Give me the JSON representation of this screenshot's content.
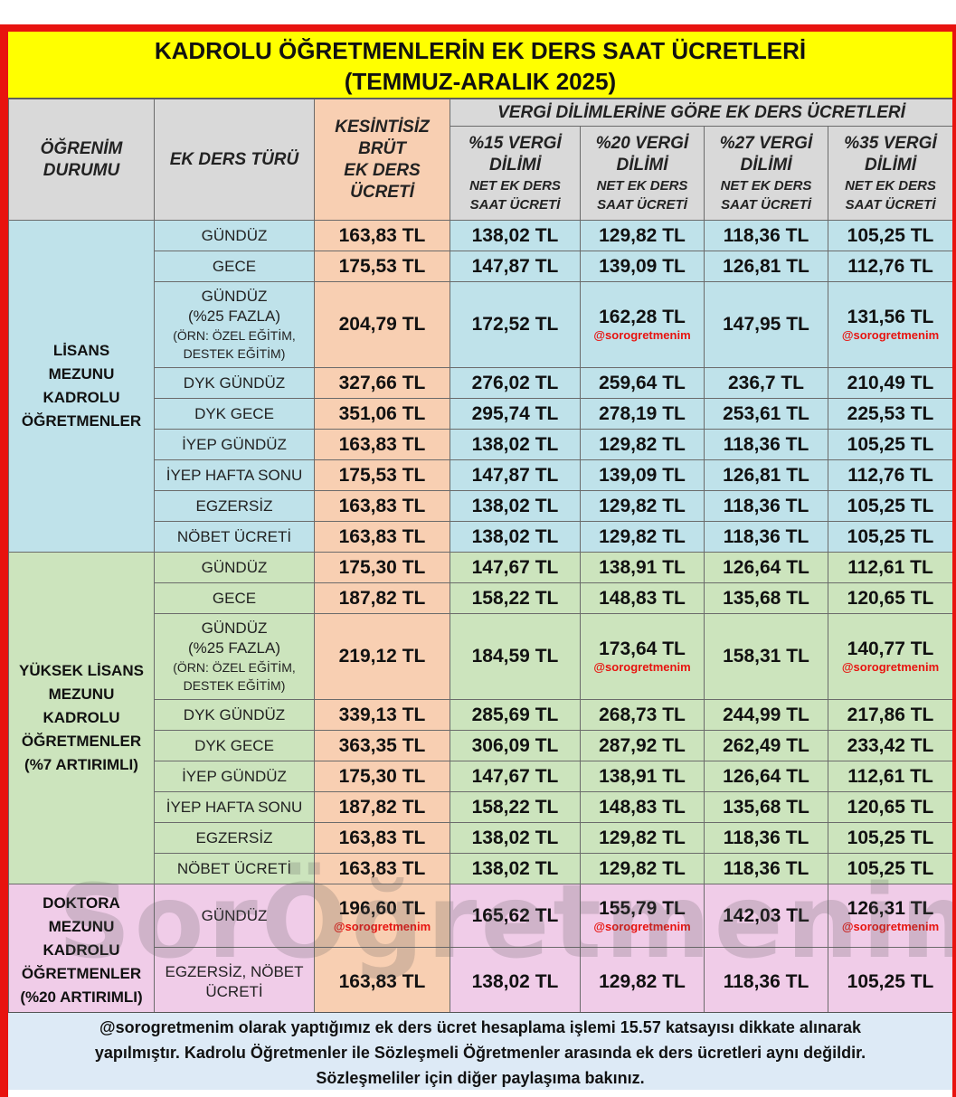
{
  "title_line1": "KADROLU ÖĞRETMENLERİN EK DERS SAAT ÜCRETLERİ",
  "title_line2": "(TEMMUZ-ARALIK 2025)",
  "headers": {
    "ogrenim": [
      "ÖĞRENİM",
      "DURUMU"
    ],
    "tur": "EK DERS TÜRÜ",
    "brut": [
      "KESİNTİSİZ",
      "BRÜT",
      "EK DERS",
      "ÜCRETİ"
    ],
    "vergi_title": "VERGİ DİLİMLERİNE GÖRE EK DERS ÜCRETLERİ",
    "dilimler": [
      {
        "top": "%15 VERGİ",
        "mid": "DİLİMİ"
      },
      {
        "top": "%20 VERGİ",
        "mid": "DİLİMİ"
      },
      {
        "top": "%27 VERGİ",
        "mid": "DİLİMİ"
      },
      {
        "top": "%35 VERGİ",
        "mid": "DİLİMİ"
      }
    ],
    "net_line1": "NET EK DERS",
    "net_line2": "SAAT ÜCRETİ"
  },
  "groups": [
    {
      "lines": [
        "LİSANS",
        "MEZUNU",
        "KADROLU",
        "ÖĞRETMENLER"
      ],
      "rows": [
        {
          "type": "GÜNDÜZ",
          "v": [
            "163,83 TL",
            "138,02 TL",
            "129,82 TL",
            "118,36 TL",
            "105,25 TL"
          ]
        },
        {
          "type": "GECE",
          "v": [
            "175,53 TL",
            "147,87 TL",
            "139,09 TL",
            "126,81 TL",
            "112,76 TL"
          ]
        },
        {
          "type": "GÜNDÜZ",
          "sub1": "(%25 FAZLA)",
          "sub2": "(ÖRN: ÖZEL EĞİTİM,",
          "sub3": "DESTEK EĞİTİM)",
          "v": [
            "204,79 TL",
            "172,52 TL",
            "162,28 TL",
            "147,95 TL",
            "131,56 TL"
          ],
          "tag": "@sorogretmenim"
        },
        {
          "type": "DYK GÜNDÜZ",
          "v": [
            "327,66 TL",
            "276,02 TL",
            "259,64 TL",
            "236,7 TL",
            "210,49 TL"
          ]
        },
        {
          "type": "DYK GECE",
          "v": [
            "351,06 TL",
            "295,74 TL",
            "278,19 TL",
            "253,61 TL",
            "225,53 TL"
          ]
        },
        {
          "type": "İYEP GÜNDÜZ",
          "v": [
            "163,83 TL",
            "138,02 TL",
            "129,82 TL",
            "118,36 TL",
            "105,25 TL"
          ]
        },
        {
          "type": "İYEP HAFTA SONU",
          "v": [
            "175,53 TL",
            "147,87 TL",
            "139,09 TL",
            "126,81 TL",
            "112,76 TL"
          ]
        },
        {
          "type": "EGZERSİZ",
          "v": [
            "163,83 TL",
            "138,02 TL",
            "129,82 TL",
            "118,36 TL",
            "105,25 TL"
          ]
        },
        {
          "type": "NÖBET ÜCRETİ",
          "v": [
            "163,83 TL",
            "138,02 TL",
            "129,82 TL",
            "118,36 TL",
            "105,25 TL"
          ]
        }
      ]
    },
    {
      "lines": [
        "YÜKSEK LİSANS",
        "MEZUNU",
        "KADROLU",
        "ÖĞRETMENLER",
        "(%7 ARTIRIMLI)"
      ],
      "rows": [
        {
          "type": "GÜNDÜZ",
          "v": [
            "175,30 TL",
            "147,67 TL",
            "138,91 TL",
            "126,64 TL",
            "112,61 TL"
          ]
        },
        {
          "type": "GECE",
          "v": [
            "187,82 TL",
            "158,22 TL",
            "148,83 TL",
            "135,68 TL",
            "120,65 TL"
          ]
        },
        {
          "type": "GÜNDÜZ",
          "sub1": "(%25 FAZLA)",
          "sub2": "(ÖRN: ÖZEL EĞİTİM,",
          "sub3": "DESTEK EĞİTİM)",
          "v": [
            "219,12 TL",
            "184,59 TL",
            "173,64 TL",
            "158,31 TL",
            "140,77 TL"
          ],
          "tag": "@sorogretmenim"
        },
        {
          "type": "DYK GÜNDÜZ",
          "v": [
            "339,13 TL",
            "285,69 TL",
            "268,73 TL",
            "244,99 TL",
            "217,86 TL"
          ]
        },
        {
          "type": "DYK GECE",
          "v": [
            "363,35 TL",
            "306,09 TL",
            "287,92 TL",
            "262,49 TL",
            "233,42 TL"
          ]
        },
        {
          "type": "İYEP GÜNDÜZ",
          "v": [
            "175,30 TL",
            "147,67 TL",
            "138,91 TL",
            "126,64 TL",
            "112,61 TL"
          ]
        },
        {
          "type": "İYEP HAFTA SONU",
          "v": [
            "187,82 TL",
            "158,22 TL",
            "148,83 TL",
            "135,68 TL",
            "120,65 TL"
          ]
        },
        {
          "type": "EGZERSİZ",
          "v": [
            "163,83 TL",
            "138,02 TL",
            "129,82 TL",
            "118,36 TL",
            "105,25 TL"
          ]
        },
        {
          "type": "NÖBET ÜCRETİ",
          "v": [
            "163,83 TL",
            "138,02 TL",
            "129,82 TL",
            "118,36 TL",
            "105,25 TL"
          ]
        }
      ]
    },
    {
      "lines": [
        "DOKTORA",
        "MEZUNU",
        "KADROLU",
        "ÖĞRETMENLER",
        "(%20 ARTIRIMLI)"
      ],
      "rows": [
        {
          "type": "GÜNDÜZ",
          "v": [
            "196,60 TL",
            "165,62 TL",
            "155,79 TL",
            "142,03 TL",
            "126,31 TL"
          ],
          "tag": "@sorogretmenim"
        },
        {
          "type": "EGZERSİZ, NÖBET",
          "sub1": "ÜCRETİ",
          "v": [
            "163,83 TL",
            "138,02 TL",
            "129,82 TL",
            "118,36 TL",
            "105,25 TL"
          ]
        }
      ]
    }
  ],
  "note_lines": [
    "@sorogretmenim olarak yaptığımız ek ders ücret hesaplama işlemi 15.57 katsayısı dikkate alınarak",
    "yapılmıştır. Kadrolu Öğretmenler ile Sözleşmeli Öğretmenler arasında ek ders ücretleri aynı değildir.",
    "Sözleşmeliler için diğer paylaşıma bakınız."
  ],
  "watermark": "SorÖğretmenim",
  "colors": {
    "frame": "#e8130f",
    "title_bg": "#ffff00",
    "header_bg": "#d9d9d9",
    "gross_bg": "#f8cfb2",
    "lisans_bg": "#bfe2ea",
    "yuksek_bg": "#cce4bd",
    "doktora_bg": "#f0cce8",
    "note_bg": "#ddeaf6"
  }
}
